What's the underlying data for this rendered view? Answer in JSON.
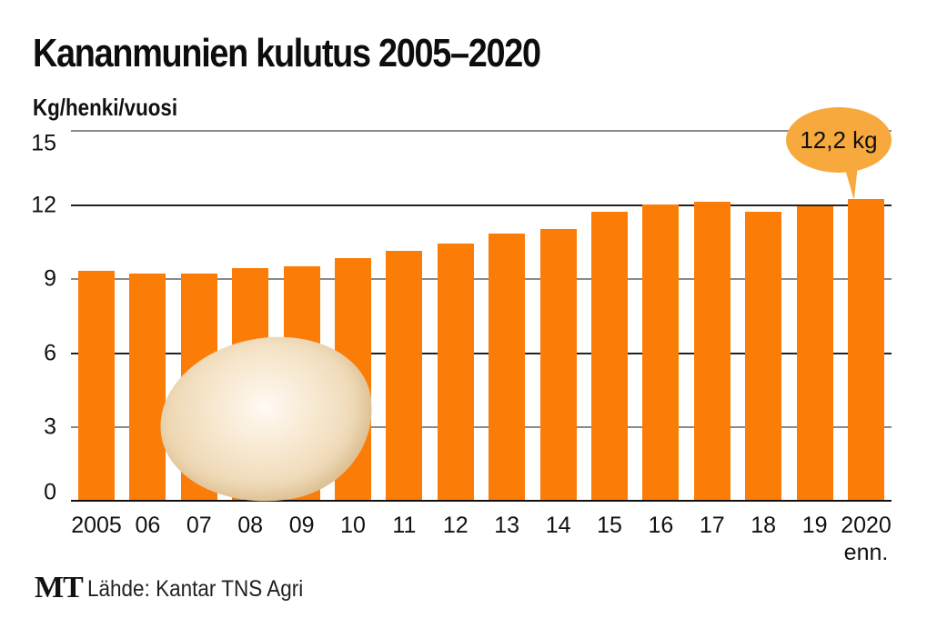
{
  "header": {
    "title": "Kananmunien kulutus 2005–2020",
    "unit_label": "Kg/henki/vuosi"
  },
  "callout": {
    "text": "12,2 kg",
    "color": "#f7a93d"
  },
  "axis": {
    "y_ticks": [
      "15",
      "12",
      "9",
      "6",
      "3",
      "0"
    ],
    "x_labels": [
      "2005",
      "06",
      "07",
      "08",
      "09",
      "10",
      "11",
      "12",
      "13",
      "14",
      "15",
      "16",
      "17",
      "18",
      "19",
      "2020"
    ],
    "x_last_sublabel": "enn."
  },
  "footer": {
    "logo": "MT",
    "source": "Lähde: Kantar TNS Agri"
  },
  "colors": {
    "bar": "#fb7d07",
    "egg": "#f0dbb8"
  },
  "chart_data": {
    "type": "bar",
    "title": "Kananmunien kulutus 2005–2020",
    "xlabel": "",
    "ylabel": "Kg/henki/vuosi",
    "categories": [
      "2005",
      "2006",
      "2007",
      "2008",
      "2009",
      "2010",
      "2011",
      "2012",
      "2013",
      "2014",
      "2015",
      "2016",
      "2017",
      "2018",
      "2019",
      "2020 enn."
    ],
    "values": [
      9.3,
      9.2,
      9.2,
      9.4,
      9.5,
      9.8,
      10.1,
      10.4,
      10.8,
      11.0,
      11.7,
      12.0,
      12.1,
      11.7,
      11.9,
      12.2
    ],
    "ylim": [
      0,
      15
    ],
    "yticks": [
      0,
      3,
      6,
      9,
      12,
      15
    ],
    "grid": true,
    "annotations": [
      {
        "category": "2020 enn.",
        "text": "12,2 kg"
      }
    ],
    "source": "Lähde: Kantar TNS Agri"
  }
}
